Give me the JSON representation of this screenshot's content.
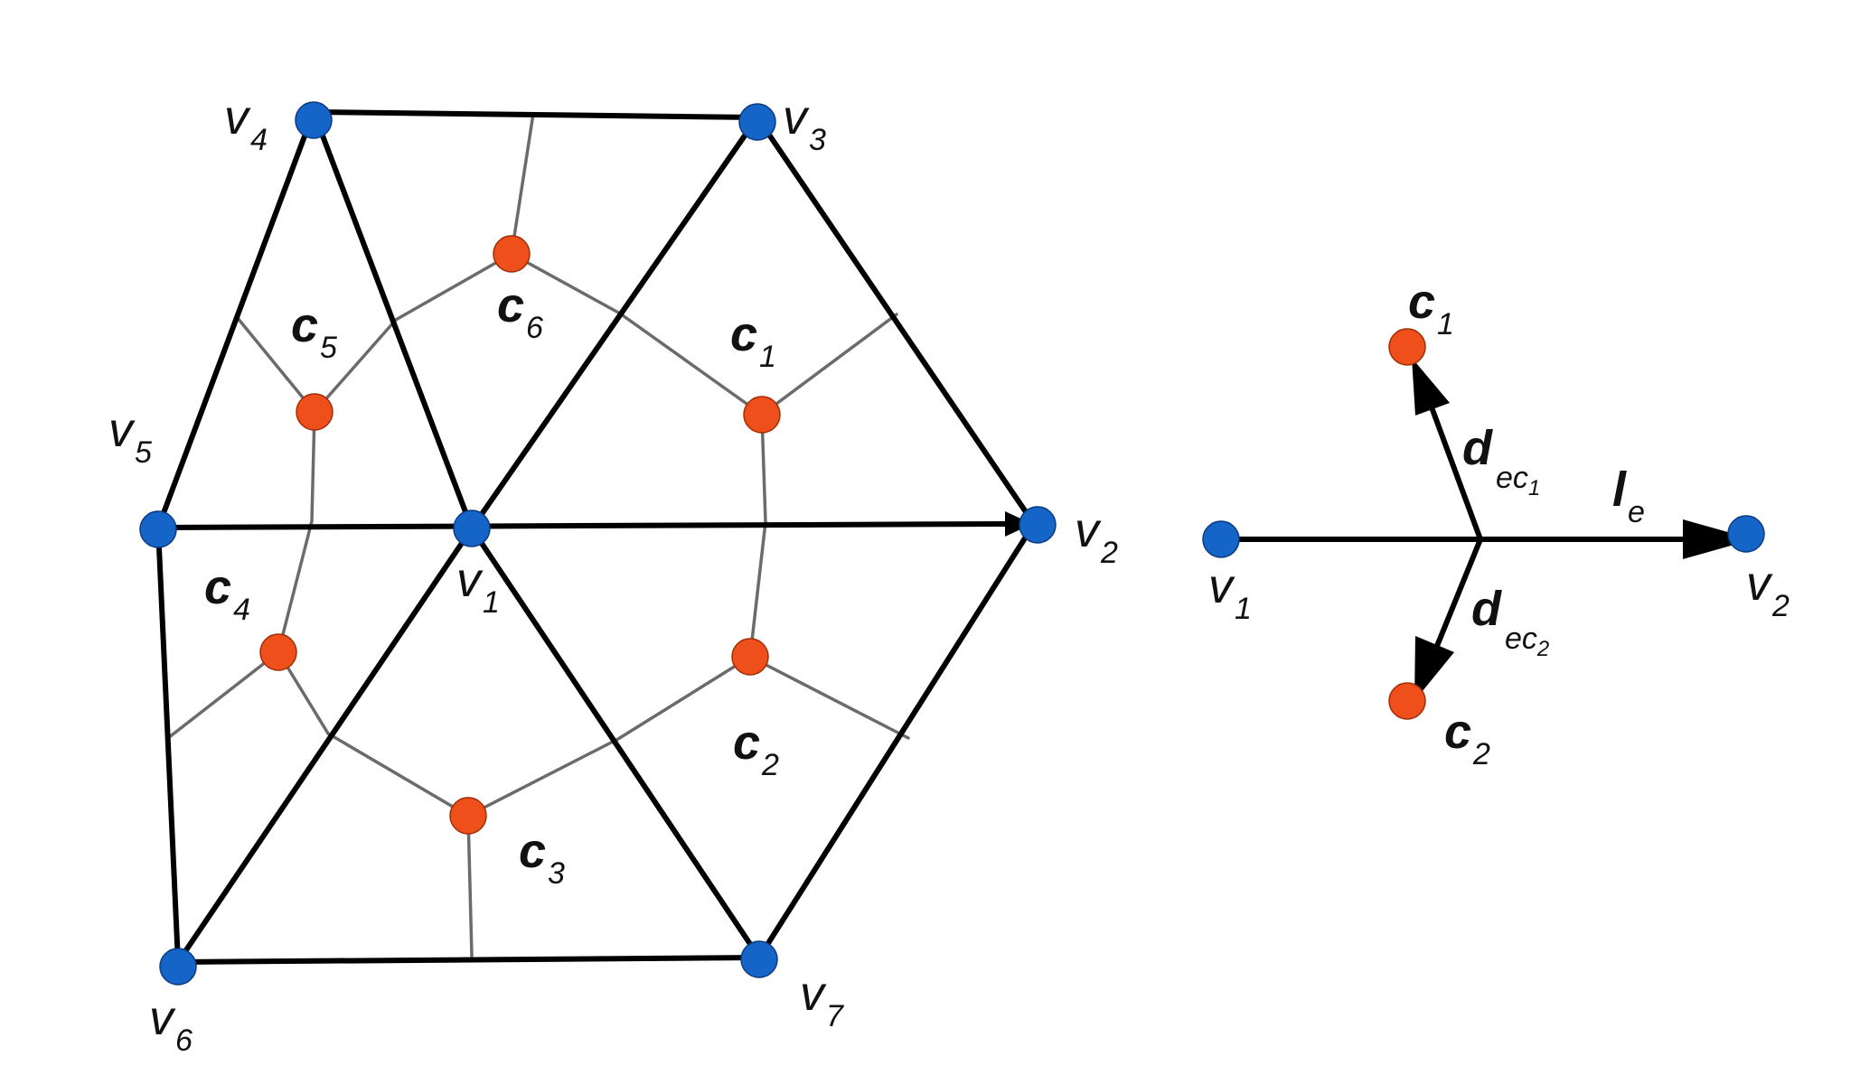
{
  "colors": {
    "vertex": "#1565c8",
    "center": "#ee4f1b",
    "edge": "#000000",
    "dual_edge": "#6b6b6b"
  },
  "left_diagram": {
    "vertices": [
      {
        "id": "v1",
        "base": "v",
        "sub": "1"
      },
      {
        "id": "v2",
        "base": "v",
        "sub": "2"
      },
      {
        "id": "v3",
        "base": "v",
        "sub": "3"
      },
      {
        "id": "v4",
        "base": "v",
        "sub": "4"
      },
      {
        "id": "v5",
        "base": "v",
        "sub": "5"
      },
      {
        "id": "v6",
        "base": "v",
        "sub": "6"
      },
      {
        "id": "v7",
        "base": "v",
        "sub": "7"
      }
    ],
    "centers": [
      {
        "id": "c1",
        "base": "c",
        "sub": "1"
      },
      {
        "id": "c2",
        "base": "c",
        "sub": "2"
      },
      {
        "id": "c3",
        "base": "c",
        "sub": "3"
      },
      {
        "id": "c4",
        "base": "c",
        "sub": "4"
      },
      {
        "id": "c5",
        "base": "c",
        "sub": "5"
      },
      {
        "id": "c6",
        "base": "c",
        "sub": "6"
      }
    ],
    "triangles": [
      {
        "center": "c1",
        "vertices": [
          "v1",
          "v2",
          "v3"
        ]
      },
      {
        "center": "c2",
        "vertices": [
          "v1",
          "v2",
          "v7"
        ]
      },
      {
        "center": "c3",
        "vertices": [
          "v1",
          "v6",
          "v7"
        ]
      },
      {
        "center": "c4",
        "vertices": [
          "v1",
          "v5",
          "v6"
        ]
      },
      {
        "center": "c5",
        "vertices": [
          "v1",
          "v4",
          "v5"
        ]
      },
      {
        "center": "c6",
        "vertices": [
          "v1",
          "v3",
          "v4"
        ]
      }
    ],
    "directed_edge": {
      "from": "v5",
      "to": "v2"
    }
  },
  "right_diagram": {
    "v1": {
      "base": "v",
      "sub": "1"
    },
    "v2": {
      "base": "v",
      "sub": "2"
    },
    "c1": {
      "base": "c",
      "sub": "1"
    },
    "c2": {
      "base": "c",
      "sub": "2"
    },
    "le": {
      "base": "l",
      "sub": "e"
    },
    "d1": {
      "base": "d",
      "sub": "ec",
      "subsub": "1"
    },
    "d2": {
      "base": "d",
      "sub": "ec",
      "subsub": "2"
    }
  }
}
